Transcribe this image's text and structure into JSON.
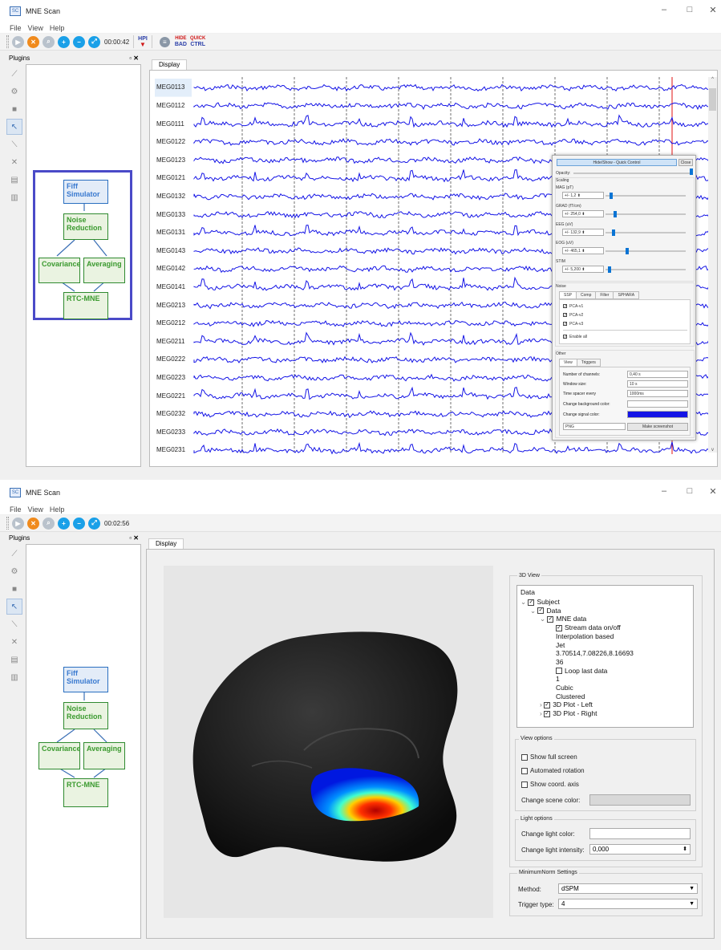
{
  "window1": {
    "title": "MNE Scan",
    "menu": [
      "File",
      "View",
      "Help"
    ],
    "timer": "00:00:42",
    "hpi_label": "HPI",
    "hide_bad_label": [
      "HIDE",
      "BAD"
    ],
    "quick_ctrl_label": [
      "QUICK",
      "CTRL"
    ],
    "plugins_title": "Plugins",
    "tab": "Display",
    "nodes": {
      "fiff": "Fiff\nSimulator",
      "noise": "Noise\nReduction",
      "cov": "Covariance",
      "avg": "Averaging",
      "rtc": "RTC-MNE"
    },
    "channels": [
      "MEG0113",
      "MEG0112",
      "MEG0111",
      "MEG0122",
      "MEG0123",
      "MEG0121",
      "MEG0132",
      "MEG0133",
      "MEG0131",
      "MEG0143",
      "MEG0142",
      "MEG0141",
      "MEG0213",
      "MEG0212",
      "MEG0211",
      "MEG0222",
      "MEG0223",
      "MEG0221",
      "MEG0232",
      "MEG0233",
      "MEG0231"
    ],
    "quick_control": {
      "title": "Hide/Show - Quick Control",
      "close": "Close",
      "opacity": "Opacity:",
      "scaling": "Scaling",
      "scales": [
        {
          "label": "MAG (pT)",
          "value": "+/- 1,2",
          "level": 0.05
        },
        {
          "label": "GRAD (fT/cm)",
          "value": "+/- 254,0",
          "level": 0.1
        },
        {
          "label": "EEG (uV)",
          "value": "+/- 132,9",
          "level": 0.08
        },
        {
          "label": "EOG (uV)",
          "value": "+/- 465,1",
          "level": 0.25
        },
        {
          "label": "STIM",
          "value": "+/- 5,200",
          "level": 0.03
        }
      ],
      "noise": "Noise",
      "noise_tabs": [
        "SSP",
        "Comp",
        "Filter",
        "SPHARA"
      ],
      "ssp_items": [
        "PCA-v1",
        "PCA-v2",
        "PCA-v3"
      ],
      "enable_all": "Enable all",
      "other": "Other",
      "other_tabs": [
        "View",
        "Triggers"
      ],
      "num_channels_label": "Number of channels:",
      "num_channels": "0,40 s",
      "window_size_label": "Window size:",
      "window_size": "10 s",
      "spacer_label": "Time spacer every",
      "spacer": "1000ms",
      "bg_color_label": "Change background color:",
      "signal_color_label": "Change signal color:",
      "signal_color": "#1414e6",
      "format": "PNG",
      "screenshot": "Make screenshot"
    }
  },
  "window2": {
    "title": "MNE Scan",
    "menu": [
      "File",
      "View",
      "Help"
    ],
    "timer": "00:02:56",
    "plugins_title": "Plugins",
    "tab": "Display",
    "nodes": {
      "fiff": "Fiff\nSimulator",
      "noise": "Noise\nReduction",
      "cov": "Covariance",
      "avg": "Averaging",
      "rtc": "RTC-MNE"
    },
    "view3d_title": "3D View",
    "data_label": "Data",
    "tree": [
      {
        "text": "Subject",
        "indent": 0,
        "arrow": "⌄",
        "check": true
      },
      {
        "text": "Data",
        "indent": 1,
        "arrow": "⌄",
        "check": true
      },
      {
        "text": "MNE data",
        "indent": 2,
        "arrow": "⌄",
        "check": true
      },
      {
        "text": "Stream data on/off",
        "indent": 3,
        "arrow": "",
        "check": true
      },
      {
        "text": "Interpolation based",
        "indent": 3,
        "arrow": "",
        "check": null
      },
      {
        "text": "Jet",
        "indent": 3,
        "arrow": "",
        "check": null
      },
      {
        "text": "3.70514,7.08226,8.16693",
        "indent": 3,
        "arrow": "",
        "check": null
      },
      {
        "text": "36",
        "indent": 3,
        "arrow": "",
        "check": null
      },
      {
        "text": "Loop last data",
        "indent": 3,
        "arrow": "",
        "check": false
      },
      {
        "text": "1",
        "indent": 3,
        "arrow": "",
        "check": null
      },
      {
        "text": "Cubic",
        "indent": 3,
        "arrow": "",
        "check": null
      },
      {
        "text": "Clustered",
        "indent": 3,
        "arrow": "",
        "check": null
      },
      {
        "text": "3D Plot - Left",
        "indent": 2,
        "arrow": "›",
        "check": true
      },
      {
        "text": "3D Plot - Right",
        "indent": 2,
        "arrow": "›",
        "check": true
      }
    ],
    "view_options": "View options",
    "show_full_screen": "Show full screen",
    "automated_rotation": "Automated rotation",
    "show_coord_axis": "Show coord. axis",
    "change_scene_color": "Change scene color:",
    "light_options": "Light options",
    "change_light_color": "Change light color:",
    "change_light_intensity": "Change light intensity:",
    "light_intensity": "0,000",
    "mn_settings": "MinimumNorm Settings",
    "method_label": "Method:",
    "method": "dSPM",
    "trigger_label": "Trigger type:",
    "trigger": "4"
  }
}
